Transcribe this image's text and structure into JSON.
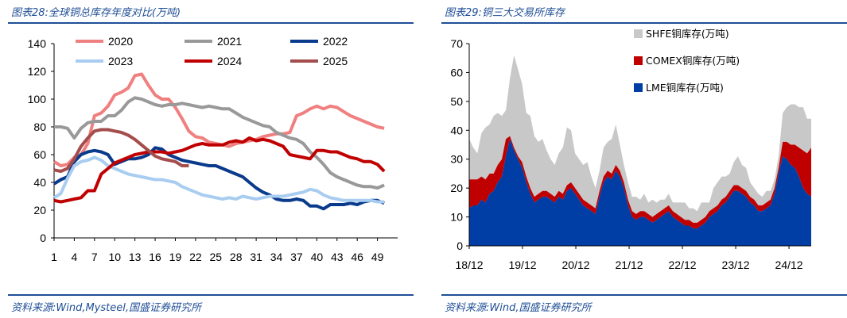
{
  "left": {
    "title": "图表28:全球铜总库存年度对比(万吨)",
    "source": "资料来源:Wind,Mysteel,国盛证券研究所"
  },
  "right": {
    "title": "图表29:铜三大交易所库存",
    "source": "资料来源:Wind,国盛证券研究所"
  },
  "chart_data": [
    {
      "type": "line",
      "title": "",
      "xlabel": "",
      "ylabel": "",
      "xlim": [
        1,
        52
      ],
      "ylim": [
        0,
        140
      ],
      "x_ticks": [
        1,
        4,
        7,
        10,
        13,
        16,
        19,
        22,
        25,
        28,
        31,
        34,
        37,
        40,
        43,
        46,
        49
      ],
      "y_ticks": [
        0,
        20,
        40,
        60,
        80,
        100,
        120,
        140
      ],
      "grid": false,
      "legend_position": "top",
      "series": [
        {
          "name": "2020",
          "color": "#f08080",
          "values": [
            55,
            52,
            53,
            58,
            60,
            68,
            88,
            90,
            95,
            103,
            105,
            108,
            117,
            118,
            110,
            103,
            100,
            100,
            94,
            86,
            77,
            73,
            72,
            69,
            68,
            67,
            66,
            68,
            69,
            70,
            71,
            73,
            74,
            75,
            75,
            76,
            88,
            90,
            93,
            95,
            93,
            95,
            94,
            91,
            88,
            86,
            84,
            82,
            80,
            79
          ]
        },
        {
          "name": "2021",
          "color": "#999999",
          "values": [
            80,
            80,
            79,
            72,
            79,
            83,
            84,
            84,
            88,
            88,
            92,
            98,
            101,
            100,
            98,
            96,
            95,
            96,
            96,
            97,
            96,
            95,
            94,
            95,
            94,
            93,
            93,
            90,
            87,
            85,
            83,
            81,
            80,
            76,
            74,
            72,
            71,
            68,
            62,
            58,
            53,
            47,
            44,
            42,
            40,
            38,
            37,
            37,
            36,
            38
          ]
        },
        {
          "name": "2022",
          "color": "#0a3a8c",
          "values": [
            39,
            42,
            44,
            55,
            60,
            62,
            63,
            62,
            60,
            53,
            55,
            57,
            57,
            58,
            60,
            65,
            64,
            60,
            58,
            56,
            55,
            54,
            53,
            52,
            52,
            50,
            48,
            46,
            44,
            40,
            36,
            33,
            31,
            28,
            27,
            27,
            28,
            27,
            23,
            23,
            21,
            24,
            24,
            24,
            25,
            24,
            26,
            27,
            27,
            25
          ]
        },
        {
          "name": "2023",
          "color": "#a9cdf0",
          "values": [
            29,
            32,
            43,
            52,
            55,
            56,
            58,
            56,
            52,
            50,
            48,
            46,
            45,
            44,
            43,
            42,
            42,
            41,
            40,
            37,
            35,
            33,
            31,
            30,
            29,
            28,
            29,
            28,
            30,
            29,
            28,
            29,
            30,
            30,
            30,
            31,
            32,
            33,
            35,
            34,
            31,
            29,
            28,
            27,
            27,
            27,
            27,
            27,
            26,
            26
          ]
        },
        {
          "name": "2024",
          "color": "#c00000",
          "values": [
            27,
            26,
            27,
            28,
            29,
            34,
            34,
            46,
            50,
            54,
            56,
            58,
            60,
            61,
            62,
            62,
            62,
            61,
            62,
            63,
            65,
            67,
            68,
            67,
            67,
            67,
            69,
            70,
            69,
            72,
            70,
            71,
            70,
            68,
            66,
            60,
            59,
            58,
            57,
            63,
            63,
            62,
            62,
            60,
            58,
            57,
            55,
            55,
            53,
            48
          ]
        },
        {
          "name": "2025",
          "color": "#a54c4c",
          "values": [
            49,
            48,
            50,
            57,
            66,
            72,
            77,
            78,
            78,
            77,
            76,
            74,
            71,
            67,
            63,
            59,
            57,
            56,
            55,
            52,
            52
          ]
        }
      ]
    },
    {
      "type": "area",
      "title": "",
      "xlabel": "",
      "ylabel": "",
      "xlim": [
        "2018-12",
        "2025-05"
      ],
      "ylim": [
        0,
        70
      ],
      "x_tick_labels": [
        "18/12",
        "19/12",
        "20/12",
        "21/12",
        "22/12",
        "23/12",
        "24/12"
      ],
      "y_ticks": [
        0,
        10,
        20,
        30,
        40,
        50,
        60,
        70
      ],
      "stacked": true,
      "grid": false,
      "legend_position": "top-right",
      "series": [
        {
          "name": "LME铜库存(万吨)",
          "color": "#003da5",
          "values": [
            13,
            14,
            14,
            16,
            15,
            18,
            19,
            22,
            24,
            31,
            37,
            33,
            30,
            27,
            22,
            18,
            15,
            16,
            17,
            17,
            16,
            15,
            17,
            16,
            19,
            20,
            18,
            16,
            14,
            13,
            12,
            11,
            17,
            22,
            24,
            23,
            26,
            24,
            20,
            14,
            10,
            9,
            10,
            10,
            9,
            8,
            9,
            10,
            11,
            12,
            10,
            9,
            8,
            7,
            7,
            6,
            6,
            7,
            8,
            10,
            11,
            12,
            14,
            15,
            17,
            19,
            19,
            18,
            17,
            15,
            14,
            12,
            12,
            13,
            14,
            18,
            25,
            31,
            30,
            28,
            27,
            24,
            20,
            18,
            17
          ]
        },
        {
          "name": "COMEX铜库存(万吨)",
          "color": "#c00000",
          "values": [
            10,
            9,
            9,
            8,
            8,
            7,
            6,
            6,
            6,
            6,
            1,
            1,
            1,
            2,
            2,
            2,
            2,
            2,
            2,
            2,
            2,
            2,
            2,
            2,
            2,
            2,
            2,
            2,
            2,
            2,
            2,
            2,
            2,
            2,
            2,
            2,
            2,
            2,
            2,
            2,
            2,
            2,
            2,
            2,
            2,
            2,
            2,
            2,
            2,
            2,
            2,
            2,
            2,
            2,
            2,
            2,
            2,
            2,
            2,
            2,
            2,
            2,
            2,
            2,
            2,
            2,
            2,
            2,
            2,
            2,
            2,
            2,
            2,
            2,
            2,
            2,
            2,
            5,
            6,
            7,
            8,
            10,
            13,
            14,
            17
          ]
        },
        {
          "name": "SHFE铜库存(万吨)",
          "color": "#c8c8c8",
          "values": [
            14,
            11,
            9,
            15,
            18,
            17,
            20,
            18,
            15,
            10,
            20,
            32,
            30,
            27,
            22,
            25,
            21,
            18,
            18,
            14,
            12,
            11,
            13,
            16,
            20,
            18,
            12,
            12,
            12,
            14,
            10,
            7,
            7,
            10,
            10,
            12,
            14,
            9,
            6,
            6,
            5,
            6,
            4,
            6,
            4,
            6,
            4,
            4,
            3,
            4,
            3,
            4,
            5,
            6,
            4,
            5,
            4,
            6,
            5,
            3,
            7,
            8,
            8,
            7,
            6,
            8,
            10,
            8,
            8,
            5,
            4,
            4,
            3,
            4,
            3,
            3,
            4,
            10,
            12,
            14,
            14,
            14,
            15,
            12,
            10
          ]
        }
      ]
    }
  ]
}
